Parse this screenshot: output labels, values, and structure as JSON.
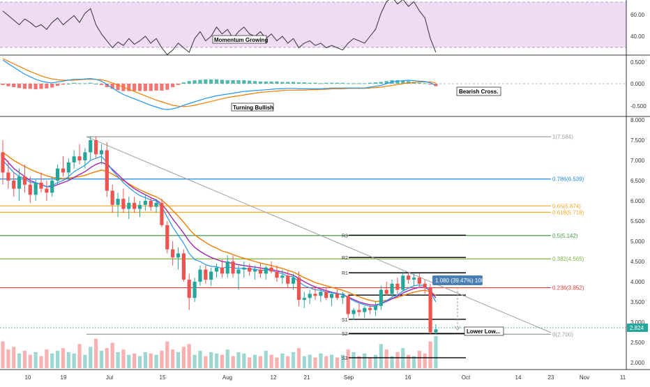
{
  "colors": {
    "up": "#26a69a",
    "down": "#ef5350",
    "ema_fast": "#2196f3",
    "ema_slow": "#f57c00",
    "ma": "#9c27b0",
    "rsi_band": "#e1bee7",
    "trendline": "#9e9e9e",
    "fib_1": "#9e9e9e",
    "fib_786": "#1e88e5",
    "fib_65": "#f9a825",
    "fib_618": "#f9a825",
    "fib_5": "#43a047",
    "fib_382": "#7cb342",
    "fib_236": "#e53935",
    "fib_0": "#9e9e9e",
    "label_box": "#4a7fb5"
  },
  "rsi_panel": {
    "ticks": [
      "60.00",
      "40.00"
    ],
    "annotation": "Momentum Growing"
  },
  "macd_panel": {
    "ticks": [
      "0.500",
      "0.000",
      "-0.500"
    ],
    "annotations": [
      "Turning Bullish",
      "Bearish Cross."
    ]
  },
  "price_panel": {
    "price_ticks": [
      "8.000",
      "7.500",
      "7.000",
      "6.500",
      "6.000",
      "5.500",
      "5.000",
      "4.500",
      "4.000",
      "3.500",
      "3.000",
      "2.500",
      "2.000"
    ],
    "current_price": "2.824",
    "measure_label": "1.080 (39.47%) 1080",
    "annotation": "Lower Low...",
    "pivot_labels": [
      "R3",
      "R2",
      "R1",
      "P",
      "S1",
      "S2",
      "S3"
    ]
  },
  "x_axis_labels": [
    "10",
    "19",
    "Jul",
    "15",
    "Aug",
    "12",
    "21",
    "Sep",
    "16",
    "Oct",
    "14",
    "23",
    "Nov",
    "11"
  ],
  "chart_data": {
    "type": "candlestick",
    "price_axis": {
      "ylim": [
        1.85,
        8.05
      ]
    },
    "fib_levels": [
      {
        "label": "1(7.584)",
        "value": 7.584
      },
      {
        "label": "0.786(6.539)",
        "value": 6.539
      },
      {
        "label": "0.65(5.874)",
        "value": 5.874
      },
      {
        "label": "0.618(5.718)",
        "value": 5.718
      },
      {
        "label": "0.5(5.142)",
        "value": 5.142
      },
      {
        "label": "0.382(4.565)",
        "value": 4.565
      },
      {
        "label": "0.236(3.852)",
        "value": 3.852
      },
      {
        "label": "0(2.700)",
        "value": 2.7
      }
    ],
    "pivots": [
      {
        "label": "R3",
        "value": 5.15
      },
      {
        "label": "R2",
        "value": 4.6
      },
      {
        "label": "R1",
        "value": 4.22
      },
      {
        "label": "P",
        "value": 3.67
      },
      {
        "label": "S1",
        "value": 3.07
      },
      {
        "label": "S2",
        "value": 2.72
      },
      {
        "label": "S3",
        "value": 2.12
      }
    ],
    "candles": [
      [
        7.2,
        7.5,
        6.4,
        6.7
      ],
      [
        6.7,
        7.0,
        6.3,
        6.5
      ],
      [
        6.5,
        6.7,
        6.1,
        6.3
      ],
      [
        6.3,
        6.8,
        6.0,
        6.6
      ],
      [
        6.6,
        6.9,
        6.2,
        6.4
      ],
      [
        6.4,
        6.6,
        5.95,
        6.15
      ],
      [
        6.15,
        6.55,
        6.0,
        6.45
      ],
      [
        6.45,
        6.7,
        6.2,
        6.3
      ],
      [
        6.3,
        6.5,
        6.0,
        6.2
      ],
      [
        6.2,
        6.6,
        6.1,
        6.5
      ],
      [
        6.5,
        6.9,
        6.4,
        6.8
      ],
      [
        6.8,
        7.1,
        6.6,
        6.7
      ],
      [
        6.7,
        7.05,
        6.5,
        6.95
      ],
      [
        6.95,
        7.25,
        6.8,
        7.1
      ],
      [
        7.1,
        7.4,
        6.9,
        7.0
      ],
      [
        7.0,
        7.3,
        6.8,
        7.2
      ],
      [
        7.2,
        7.6,
        7.0,
        7.5
      ],
      [
        7.5,
        7.58,
        7.05,
        7.15
      ],
      [
        7.15,
        7.4,
        6.9,
        7.25
      ],
      [
        7.25,
        7.45,
        6.1,
        6.25
      ],
      [
        6.25,
        6.4,
        5.7,
        5.9
      ],
      [
        5.9,
        6.2,
        5.6,
        6.05
      ],
      [
        6.05,
        6.3,
        5.7,
        5.8
      ],
      [
        5.8,
        6.1,
        5.55,
        5.95
      ],
      [
        5.95,
        6.1,
        5.7,
        5.8
      ],
      [
        5.8,
        6.0,
        5.6,
        5.9
      ],
      [
        5.9,
        6.15,
        5.75,
        6.0
      ],
      [
        6.0,
        6.1,
        5.75,
        5.85
      ],
      [
        5.85,
        6.05,
        5.7,
        5.95
      ],
      [
        5.95,
        6.05,
        5.35,
        5.4
      ],
      [
        5.4,
        5.5,
        4.7,
        4.8
      ],
      [
        4.8,
        5.0,
        4.4,
        4.6
      ],
      [
        4.6,
        4.85,
        4.3,
        4.7
      ],
      [
        4.7,
        4.8,
        4.0,
        4.05
      ],
      [
        4.05,
        4.2,
        3.3,
        3.6
      ],
      [
        3.6,
        4.1,
        3.5,
        4.0
      ],
      [
        4.0,
        4.4,
        3.9,
        4.3
      ],
      [
        4.3,
        4.4,
        3.95,
        4.05
      ],
      [
        4.05,
        4.35,
        3.9,
        4.25
      ],
      [
        4.25,
        4.45,
        4.1,
        4.35
      ],
      [
        4.35,
        4.55,
        4.1,
        4.2
      ],
      [
        4.2,
        4.65,
        4.1,
        4.5
      ],
      [
        4.5,
        4.65,
        4.1,
        4.2
      ],
      [
        4.2,
        4.4,
        3.8,
        4.3
      ],
      [
        4.3,
        4.5,
        4.1,
        4.35
      ],
      [
        4.35,
        4.45,
        4.15,
        4.25
      ],
      [
        4.25,
        4.4,
        4.05,
        4.3
      ],
      [
        4.3,
        4.45,
        4.1,
        4.2
      ],
      [
        4.2,
        4.4,
        4.05,
        4.35
      ],
      [
        4.35,
        4.5,
        4.2,
        4.25
      ],
      [
        4.25,
        4.4,
        4.0,
        4.1
      ],
      [
        4.1,
        4.3,
        3.95,
        4.15
      ],
      [
        4.15,
        4.25,
        3.85,
        3.95
      ],
      [
        3.95,
        4.2,
        3.8,
        4.1
      ],
      [
        4.1,
        4.25,
        3.4,
        3.55
      ],
      [
        3.55,
        3.75,
        3.35,
        3.6
      ],
      [
        3.6,
        3.8,
        3.45,
        3.7
      ],
      [
        3.7,
        3.85,
        3.55,
        3.65
      ],
      [
        3.65,
        3.8,
        3.5,
        3.75
      ],
      [
        3.75,
        3.85,
        3.55,
        3.6
      ],
      [
        3.6,
        3.75,
        3.4,
        3.7
      ],
      [
        3.7,
        3.8,
        3.55,
        3.6
      ],
      [
        3.6,
        3.75,
        3.45,
        3.65
      ],
      [
        3.65,
        3.7,
        3.1,
        3.2
      ],
      [
        3.2,
        3.35,
        3.05,
        3.3
      ],
      [
        3.3,
        3.45,
        3.15,
        3.25
      ],
      [
        3.25,
        3.4,
        3.1,
        3.35
      ],
      [
        3.35,
        3.45,
        3.2,
        3.3
      ],
      [
        3.3,
        3.5,
        3.15,
        3.4
      ],
      [
        3.4,
        3.9,
        3.3,
        3.8
      ],
      [
        3.8,
        4.0,
        3.65,
        3.7
      ],
      [
        3.7,
        4.05,
        3.6,
        3.95
      ],
      [
        3.95,
        4.1,
        3.7,
        3.8
      ],
      [
        3.8,
        4.25,
        3.75,
        4.15
      ],
      [
        4.15,
        4.25,
        3.95,
        4.05
      ],
      [
        4.05,
        4.2,
        3.9,
        4.1
      ],
      [
        4.1,
        4.2,
        3.85,
        3.95
      ],
      [
        3.95,
        4.05,
        3.7,
        3.85
      ],
      [
        3.85,
        3.95,
        2.7,
        2.75
      ],
      [
        2.75,
        2.95,
        2.7,
        2.82
      ]
    ],
    "ema_fast": [
      7.0,
      6.85,
      6.7,
      6.6,
      6.55,
      6.45,
      6.45,
      6.4,
      6.35,
      6.38,
      6.45,
      6.5,
      6.6,
      6.72,
      6.8,
      6.88,
      7.0,
      7.05,
      7.1,
      6.95,
      6.75,
      6.6,
      6.45,
      6.33,
      6.22,
      6.13,
      6.08,
      6.02,
      6.0,
      5.85,
      5.6,
      5.35,
      5.15,
      4.95,
      4.7,
      4.55,
      4.5,
      4.42,
      4.38,
      4.37,
      4.33,
      4.37,
      4.34,
      4.33,
      4.33,
      4.31,
      4.31,
      4.28,
      4.29,
      4.28,
      4.23,
      4.2,
      4.14,
      4.12,
      4.0,
      3.9,
      3.85,
      3.8,
      3.79,
      3.74,
      3.73,
      3.7,
      3.69,
      3.6,
      3.53,
      3.47,
      3.43,
      3.39,
      3.39,
      3.47,
      3.53,
      3.62,
      3.67,
      3.77,
      3.84,
      3.9,
      3.92,
      3.9,
      3.75,
      3.5
    ],
    "ma": [
      7.1,
      6.95,
      6.8,
      6.7,
      6.6,
      6.5,
      6.45,
      6.4,
      6.35,
      6.35,
      6.4,
      6.45,
      6.5,
      6.58,
      6.65,
      6.72,
      6.82,
      6.9,
      6.95,
      6.9,
      6.78,
      6.65,
      6.52,
      6.4,
      6.3,
      6.22,
      6.15,
      6.08,
      6.02,
      5.92,
      5.75,
      5.55,
      5.38,
      5.2,
      5.0,
      4.85,
      4.75,
      4.67,
      4.6,
      4.55,
      4.5,
      4.48,
      4.45,
      4.42,
      4.4,
      4.38,
      4.36,
      4.34,
      4.32,
      4.3,
      4.27,
      4.24,
      4.2,
      4.16,
      4.08,
      4.0,
      3.93,
      3.87,
      3.82,
      3.78,
      3.74,
      3.71,
      3.68,
      3.62,
      3.56,
      3.5,
      3.46,
      3.43,
      3.42,
      3.46,
      3.51,
      3.58,
      3.64,
      3.72,
      3.78,
      3.83,
      3.86,
      3.86,
      3.78,
      3.6
    ],
    "ema_slow": [
      7.2,
      7.1,
      7.0,
      6.92,
      6.85,
      6.78,
      6.72,
      6.67,
      6.62,
      6.58,
      6.56,
      6.55,
      6.56,
      6.58,
      6.6,
      6.63,
      6.68,
      6.72,
      6.76,
      6.73,
      6.66,
      6.58,
      6.5,
      6.42,
      6.34,
      6.27,
      6.21,
      6.15,
      6.1,
      6.02,
      5.9,
      5.76,
      5.62,
      5.47,
      5.3,
      5.16,
      5.06,
      4.97,
      4.89,
      4.83,
      4.76,
      4.72,
      4.67,
      4.62,
      4.58,
      4.54,
      4.5,
      4.46,
      4.43,
      4.4,
      4.36,
      4.33,
      4.28,
      4.24,
      4.17,
      4.1,
      4.04,
      3.98,
      3.94,
      3.9,
      3.86,
      3.82,
      3.79,
      3.74,
      3.68,
      3.63,
      3.58,
      3.54,
      3.51,
      3.52,
      3.54,
      3.58,
      3.61,
      3.66,
      3.7,
      3.74,
      3.77,
      3.79,
      3.75,
      3.66
    ],
    "volume": [
      20,
      14,
      16,
      11,
      13,
      10,
      12,
      9,
      14,
      11,
      13,
      15,
      12,
      11,
      18,
      10,
      16,
      22,
      13,
      15,
      19,
      12,
      14,
      10,
      11,
      9,
      12,
      11,
      10,
      13,
      20,
      14,
      12,
      16,
      18,
      10,
      13,
      9,
      12,
      11,
      10,
      14,
      9,
      12,
      11,
      8,
      10,
      9,
      13,
      10,
      8,
      11,
      9,
      12,
      15,
      9,
      10,
      8,
      11,
      9,
      10,
      8,
      10,
      14,
      12,
      9,
      11,
      8,
      10,
      18,
      14,
      9,
      12,
      15,
      10,
      9,
      13,
      11,
      20,
      24
    ],
    "rsi": [
      62,
      58,
      54,
      50,
      55,
      52,
      48,
      50,
      46,
      52,
      56,
      50,
      54,
      58,
      52,
      60,
      64,
      50,
      42,
      36,
      30,
      35,
      32,
      38,
      33,
      36,
      40,
      34,
      38,
      30,
      24,
      28,
      34,
      30,
      26,
      38,
      44,
      36,
      40,
      48,
      42,
      46,
      38,
      44,
      48,
      42,
      40,
      44,
      38,
      42,
      36,
      40,
      34,
      38,
      30,
      34,
      36,
      32,
      34,
      30,
      32,
      30,
      28,
      34,
      38,
      36,
      34,
      40,
      46,
      60,
      70,
      74,
      68,
      72,
      66,
      70,
      62,
      56,
      38,
      26
    ],
    "macd_line": [
      0.55,
      0.46,
      0.38,
      0.3,
      0.22,
      0.16,
      0.1,
      0.06,
      0.03,
      0.02,
      0.04,
      0.06,
      0.08,
      0.1,
      0.1,
      0.11,
      0.12,
      0.1,
      0.06,
      -0.02,
      -0.1,
      -0.18,
      -0.25,
      -0.3,
      -0.35,
      -0.4,
      -0.45,
      -0.5,
      -0.54,
      -0.58,
      -0.6,
      -0.58,
      -0.55,
      -0.5,
      -0.46,
      -0.42,
      -0.38,
      -0.34,
      -0.31,
      -0.28,
      -0.26,
      -0.24,
      -0.22,
      -0.2,
      -0.18,
      -0.17,
      -0.16,
      -0.15,
      -0.14,
      -0.13,
      -0.12,
      -0.12,
      -0.11,
      -0.11,
      -0.12,
      -0.12,
      -0.12,
      -0.12,
      -0.12,
      -0.11,
      -0.1,
      -0.1,
      -0.1,
      -0.1,
      -0.1,
      -0.1,
      -0.1,
      -0.08,
      -0.06,
      -0.04,
      0.0,
      0.04,
      0.06,
      0.07,
      0.08,
      0.07,
      0.06,
      0.05,
      0.02,
      -0.04
    ],
    "macd_signal": [
      0.58,
      0.52,
      0.46,
      0.4,
      0.34,
      0.28,
      0.23,
      0.18,
      0.14,
      0.11,
      0.09,
      0.08,
      0.08,
      0.08,
      0.09,
      0.1,
      0.1,
      0.1,
      0.09,
      0.06,
      0.02,
      -0.03,
      -0.08,
      -0.13,
      -0.18,
      -0.23,
      -0.28,
      -0.33,
      -0.38,
      -0.42,
      -0.46,
      -0.5,
      -0.52,
      -0.53,
      -0.52,
      -0.5,
      -0.47,
      -0.44,
      -0.41,
      -0.38,
      -0.35,
      -0.32,
      -0.3,
      -0.28,
      -0.26,
      -0.24,
      -0.22,
      -0.2,
      -0.19,
      -0.18,
      -0.17,
      -0.16,
      -0.15,
      -0.15,
      -0.15,
      -0.15,
      -0.14,
      -0.14,
      -0.13,
      -0.13,
      -0.12,
      -0.12,
      -0.12,
      -0.11,
      -0.11,
      -0.11,
      -0.11,
      -0.1,
      -0.09,
      -0.08,
      -0.06,
      -0.04,
      -0.02,
      0.0,
      0.02,
      0.03,
      0.04,
      0.04,
      0.04,
      0.02
    ]
  }
}
